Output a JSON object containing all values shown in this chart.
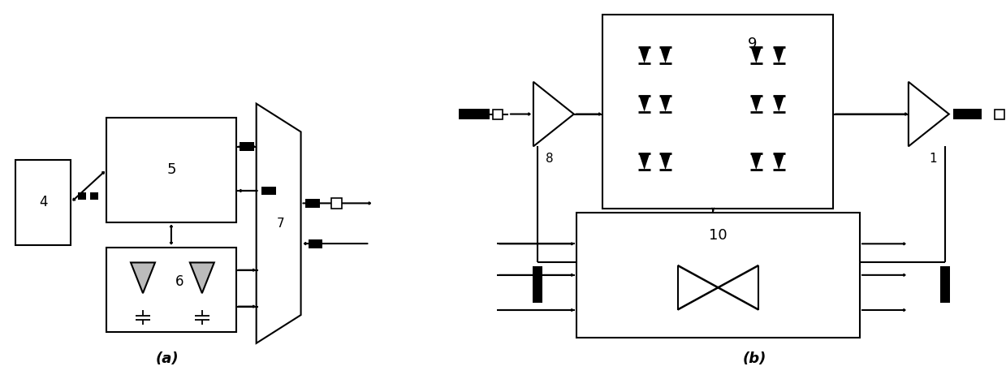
{
  "fig_width": 12.39,
  "fig_height": 4.62,
  "bg_color": "#ffffff",
  "label_a": "(a)",
  "label_b": "(b)"
}
